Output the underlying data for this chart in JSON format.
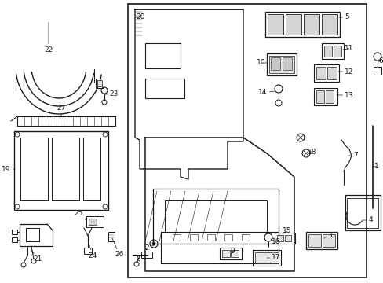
{
  "bg_color": "#ffffff",
  "line_color": "#1a1a1a",
  "fig_width": 4.89,
  "fig_height": 3.6,
  "dpi": 100,
  "label_fontsize": 6.5,
  "label_fontsize_sm": 6.0
}
